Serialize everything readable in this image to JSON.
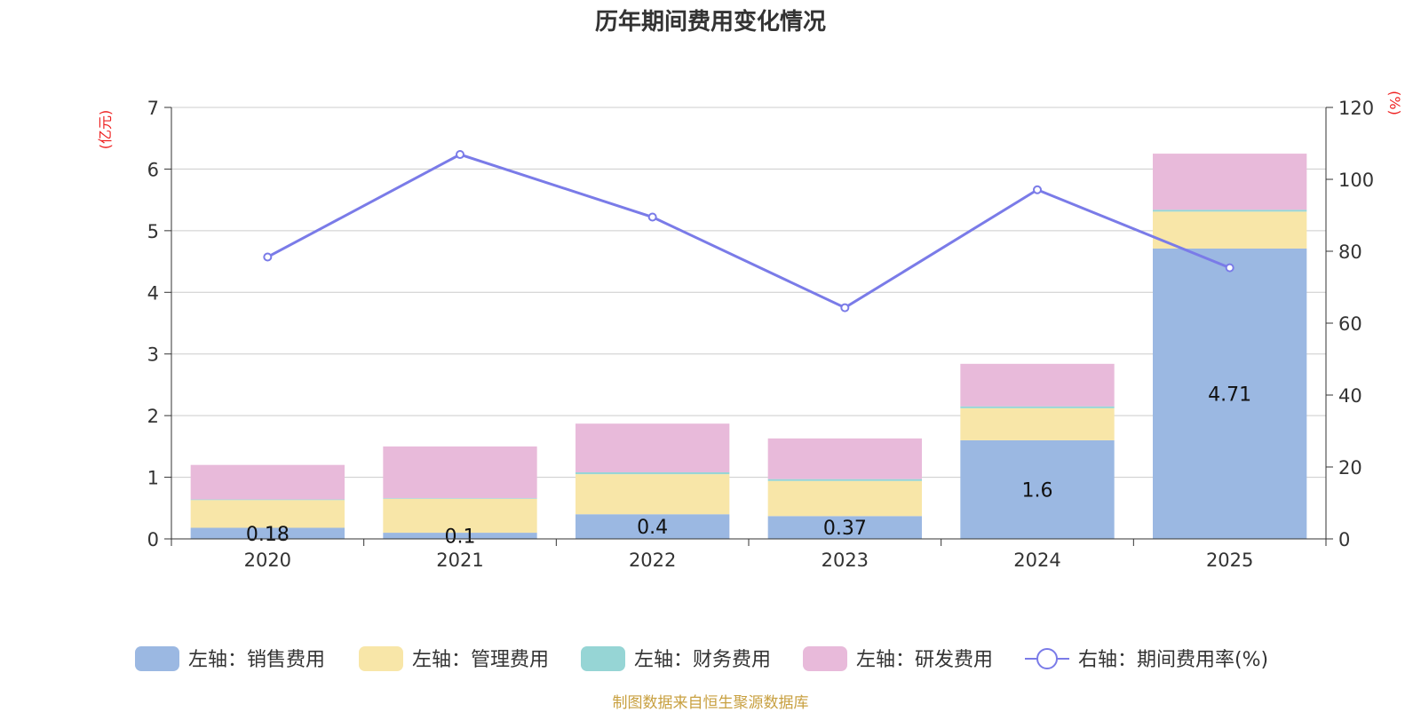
{
  "title": "历年期间费用变化情况",
  "footer": "制图数据来自恒生聚源数据库",
  "chart_data": {
    "type": "bar",
    "stacked": true,
    "title": "历年期间费用变化情况",
    "categories": [
      "2020",
      "2021",
      "2022",
      "2023",
      "2024",
      "2025"
    ],
    "left_axis": {
      "unit": "(亿元)",
      "range": [
        0,
        7
      ],
      "ticks": [
        "0",
        "1",
        "2",
        "3",
        "4",
        "5",
        "6",
        "7"
      ]
    },
    "right_axis": {
      "unit": "(%)",
      "range": [
        0,
        120
      ],
      "ticks": [
        "0",
        "20",
        "40",
        "60",
        "80",
        "100",
        "120"
      ]
    },
    "grid": true,
    "legend_position": "bottom",
    "series": [
      {
        "name": "左轴：销售费用",
        "axis": "left",
        "kind": "bar",
        "color": "#9bb8e2",
        "values": [
          0.18,
          0.1,
          0.4,
          0.37,
          1.6,
          4.71
        ],
        "labels": [
          "0.18",
          "0.1",
          "0.4",
          "0.37",
          "1.6",
          "4.71"
        ]
      },
      {
        "name": "左轴：管理费用",
        "axis": "left",
        "kind": "bar",
        "color": "#f8e6a8",
        "values": [
          0.45,
          0.55,
          0.65,
          0.57,
          0.52,
          0.6
        ]
      },
      {
        "name": "左轴：财务费用",
        "axis": "left",
        "kind": "bar",
        "color": "#96d5d5",
        "values": [
          0.01,
          0.01,
          0.03,
          0.03,
          0.03,
          0.03
        ]
      },
      {
        "name": "左轴：研发费用",
        "axis": "left",
        "kind": "bar",
        "color": "#e8bada",
        "values": [
          0.56,
          0.84,
          0.79,
          0.66,
          0.69,
          0.91
        ]
      },
      {
        "name": "右轴：期间费用率(%)",
        "axis": "right",
        "kind": "line",
        "color": "#7a7be8",
        "values": [
          78.4,
          106.9,
          89.5,
          64.3,
          97.1,
          75.4
        ]
      }
    ]
  }
}
